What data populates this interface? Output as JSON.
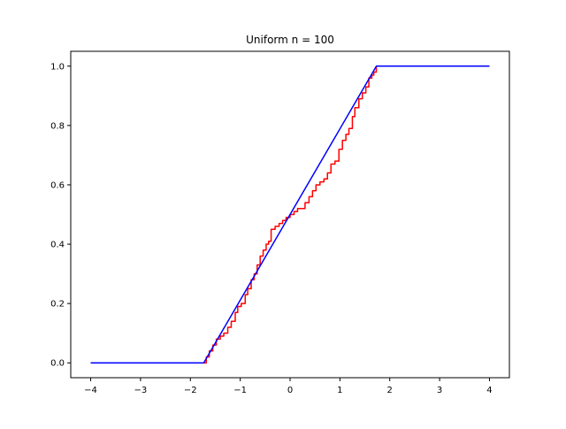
{
  "chart_data": {
    "type": "line",
    "title": "Uniform n = 100",
    "xlabel": "",
    "ylabel": "",
    "xlim": [
      -4.4,
      4.4
    ],
    "ylim": [
      -0.05,
      1.05
    ],
    "x_ticks": [
      -4,
      -3,
      -2,
      -1,
      0,
      1,
      2,
      3,
      4
    ],
    "x_tick_labels": [
      "−4",
      "−3",
      "−2",
      "−1",
      "0",
      "1",
      "2",
      "3",
      "4"
    ],
    "y_ticks": [
      0.0,
      0.2,
      0.4,
      0.6,
      0.8,
      1.0
    ],
    "y_tick_labels": [
      "0.0",
      "0.2",
      "0.4",
      "0.6",
      "0.8",
      "1.0"
    ],
    "grid": false,
    "legend": "none",
    "series": [
      {
        "color": "#ff0000",
        "style": "step",
        "x": [
          -4.0,
          -1.72,
          -1.68,
          -1.62,
          -1.55,
          -1.48,
          -1.4,
          -1.33,
          -1.25,
          -1.18,
          -1.1,
          -1.05,
          -0.98,
          -0.9,
          -0.85,
          -0.78,
          -0.72,
          -0.66,
          -0.6,
          -0.54,
          -0.48,
          -0.43,
          -0.38,
          -0.3,
          -0.22,
          -0.15,
          -0.08,
          0.0,
          0.08,
          0.15,
          0.22,
          0.3,
          0.38,
          0.45,
          0.52,
          0.6,
          0.68,
          0.75,
          0.82,
          0.9,
          0.98,
          1.05,
          1.12,
          1.18,
          1.25,
          1.3,
          1.38,
          1.45,
          1.52,
          1.58,
          1.64,
          1.68,
          1.73,
          4.0
        ],
        "y": [
          0.0,
          0.0,
          0.02,
          0.04,
          0.06,
          0.08,
          0.09,
          0.1,
          0.12,
          0.14,
          0.17,
          0.19,
          0.2,
          0.23,
          0.25,
          0.28,
          0.3,
          0.33,
          0.36,
          0.38,
          0.4,
          0.41,
          0.45,
          0.46,
          0.47,
          0.48,
          0.49,
          0.5,
          0.51,
          0.52,
          0.52,
          0.54,
          0.56,
          0.58,
          0.6,
          0.61,
          0.62,
          0.64,
          0.67,
          0.68,
          0.72,
          0.75,
          0.77,
          0.79,
          0.83,
          0.86,
          0.89,
          0.91,
          0.93,
          0.96,
          0.97,
          0.98,
          1.0,
          1.0
        ]
      },
      {
        "color": "#0000ff",
        "style": "line",
        "x": [
          -4.0,
          -1.732,
          1.732,
          4.0
        ],
        "y": [
          0.0,
          0.0,
          1.0,
          1.0
        ]
      }
    ]
  }
}
